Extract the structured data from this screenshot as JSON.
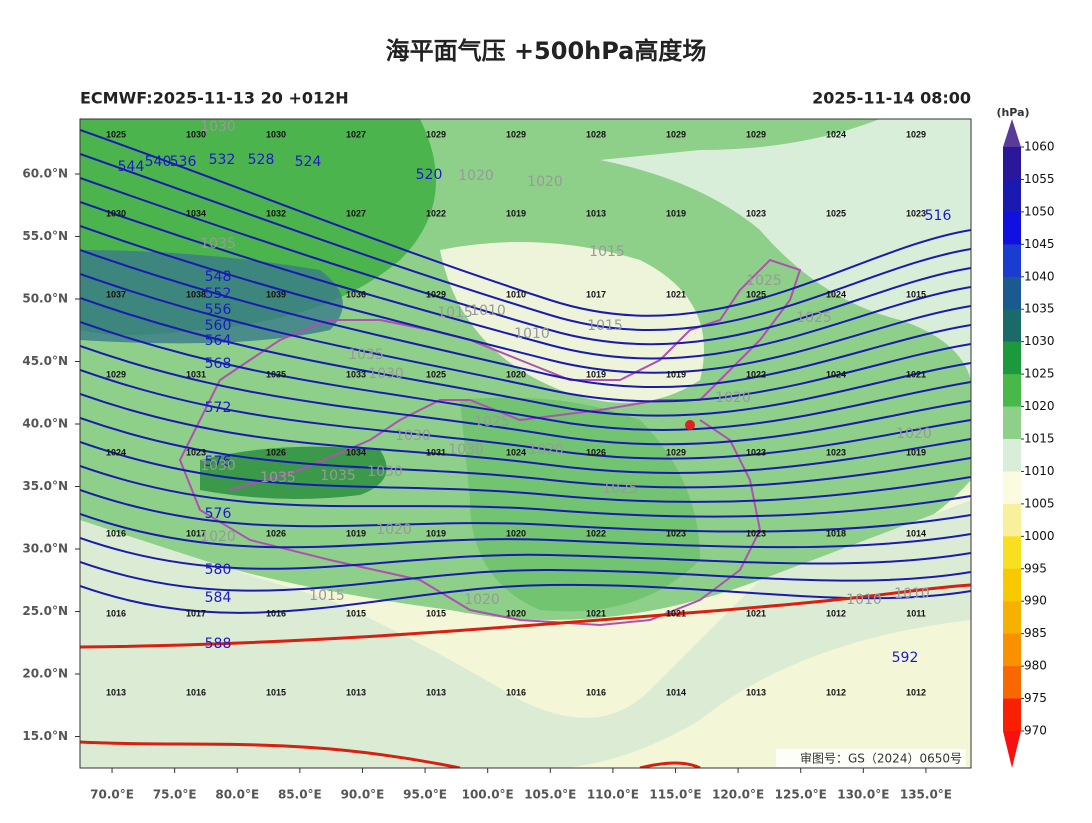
{
  "title": "海平面气压 +500hPa高度场",
  "subtitle_left": "ECMWF:2025-11-13 20 +012H",
  "subtitle_right": "2025-11-14 08:00",
  "map": {
    "xlim": [
      67.44,
      138.6
    ],
    "ylim": [
      12.48,
      64.4
    ],
    "xticks": [
      {
        "value": 70,
        "label": "70.0°E"
      },
      {
        "value": 75,
        "label": "75.0°E"
      },
      {
        "value": 80,
        "label": "80.0°E"
      },
      {
        "value": 85,
        "label": "85.0°E"
      },
      {
        "value": 90,
        "label": "90.0°E"
      },
      {
        "value": 95,
        "label": "95.0°E"
      },
      {
        "value": 100,
        "label": "100.0°E"
      },
      {
        "value": 105,
        "label": "105.0°E"
      },
      {
        "value": 110,
        "label": "110.0°E"
      },
      {
        "value": 115,
        "label": "115.0°E"
      },
      {
        "value": 120,
        "label": "120.0°E"
      },
      {
        "value": 125,
        "label": "125.0°E"
      },
      {
        "value": 130,
        "label": "130.0°E"
      },
      {
        "value": 135,
        "label": "135.0°E"
      }
    ],
    "yticks": [
      {
        "value": 60,
        "label": "60.0°N"
      },
      {
        "value": 55,
        "label": "55.0°N"
      },
      {
        "value": 50,
        "label": "50.0°N"
      },
      {
        "value": 45,
        "label": "45.0°N"
      },
      {
        "value": 40,
        "label": "40.0°N"
      },
      {
        "value": 35,
        "label": "35.0°N"
      },
      {
        "value": 30,
        "label": "30.0°N"
      },
      {
        "value": 25,
        "label": "25.0°N"
      },
      {
        "value": 20,
        "label": "20.0°N"
      },
      {
        "value": 15,
        "label": "15.0°N"
      }
    ]
  },
  "stations": [
    [
      1025,
      1030,
      1030,
      1027,
      1029,
      1029,
      1028,
      1029,
      1029,
      1024,
      1029
    ],
    [
      1030,
      1034,
      1032,
      1027,
      1022,
      1019,
      1013,
      1019,
      1023,
      1025,
      1023
    ],
    [
      1037,
      1038,
      1039,
      1036,
      1029,
      1010,
      1017,
      1021,
      1025,
      1024,
      1015
    ],
    [
      1029,
      1031,
      1035,
      1033,
      1025,
      1020,
      1019,
      1019,
      1022,
      1024,
      1021
    ],
    [
      1024,
      1023,
      1026,
      1034,
      1031,
      1024,
      1026,
      1029,
      1023,
      1023,
      1019
    ],
    [
      1016,
      1017,
      1026,
      1019,
      1019,
      1020,
      1022,
      1023,
      1023,
      1018,
      1014
    ],
    [
      1016,
      1017,
      1016,
      1015,
      1015,
      1020,
      1021,
      1021,
      1021,
      1012,
      1011
    ],
    [
      1013,
      1016,
      1015,
      1013,
      1013,
      1016,
      1016,
      1014,
      1013,
      1012,
      1012
    ]
  ],
  "height_labels": [
    544,
    540,
    536,
    532,
    528,
    524,
    520,
    516,
    548,
    552,
    556,
    560,
    564,
    568,
    572,
    576,
    576,
    580,
    584,
    588,
    592
  ],
  "pressure_labels": [
    1020,
    1020,
    1015,
    1015,
    1010,
    1010,
    1015,
    1035,
    1035,
    1030,
    1025,
    1025,
    1020,
    1025,
    1030,
    1030,
    1020,
    1030,
    1035,
    1035,
    1030,
    1025,
    1020,
    1020,
    1020,
    1015,
    1020,
    1010,
    1010,
    1030
  ],
  "review_number": "审图号：GS（2024）0650号",
  "colorbar": {
    "unit": "(hPa)",
    "ticks": [
      1060,
      1055,
      1050,
      1045,
      1040,
      1035,
      1030,
      1025,
      1020,
      1015,
      1010,
      1005,
      1000,
      995,
      990,
      985,
      980,
      975,
      970
    ],
    "colors": [
      "#5a3a9a",
      "#2a189a",
      "#1a1ab0",
      "#1010e0",
      "#1a3cd0",
      "#1a5a90",
      "#1a6a6a",
      "#1a9a3a",
      "#48b848",
      "#8ed08a",
      "#d8eed8",
      "#fbfbe0",
      "#f8f09a",
      "#f8e020",
      "#f8c800",
      "#f8b000",
      "#f89000",
      "#f86800",
      "#f82000",
      "#f81010"
    ]
  }
}
